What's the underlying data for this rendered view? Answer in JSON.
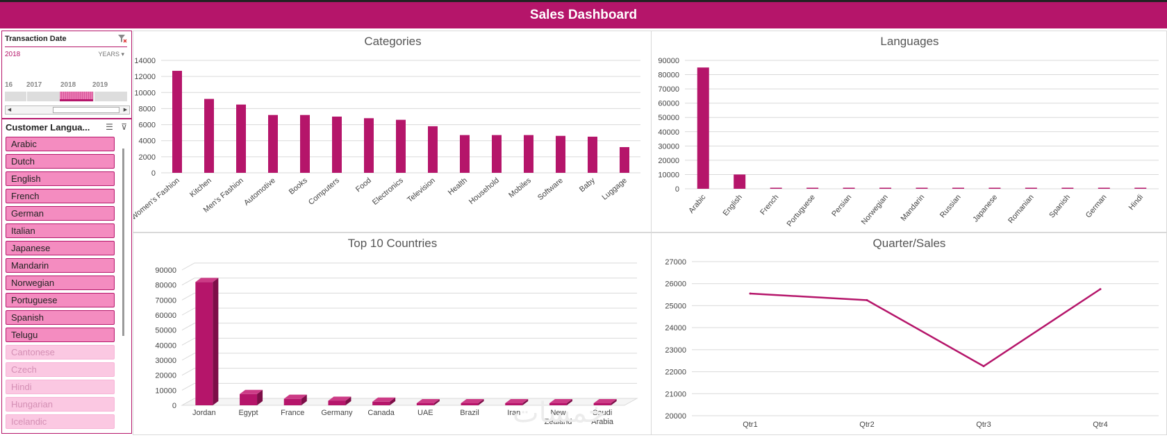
{
  "header": {
    "title": "Sales Dashboard"
  },
  "colors": {
    "accent": "#b5156a",
    "accent_dark": "#7d0e48",
    "accent_light": "#f48cc0"
  },
  "date_slicer": {
    "title": "Transaction Date",
    "selection": "2018",
    "level": "YEARS",
    "years": [
      "16",
      "2017",
      "2018",
      "2019"
    ]
  },
  "lang_slicer": {
    "title": "Customer Langua...",
    "items": [
      {
        "label": "Arabic",
        "selected": true
      },
      {
        "label": "Dutch",
        "selected": true
      },
      {
        "label": "English",
        "selected": true
      },
      {
        "label": "French",
        "selected": true
      },
      {
        "label": "German",
        "selected": true
      },
      {
        "label": "Italian",
        "selected": true
      },
      {
        "label": "Japanese",
        "selected": true
      },
      {
        "label": "Mandarin",
        "selected": true
      },
      {
        "label": "Norwegian",
        "selected": true
      },
      {
        "label": "Portuguese",
        "selected": true
      },
      {
        "label": "Spanish",
        "selected": true
      },
      {
        "label": "Telugu",
        "selected": true
      },
      {
        "label": "Cantonese",
        "selected": false
      },
      {
        "label": "Czech",
        "selected": false
      },
      {
        "label": "Hindi",
        "selected": false
      },
      {
        "label": "Hungarian",
        "selected": false
      },
      {
        "label": "Icelandic",
        "selected": false
      }
    ]
  },
  "chart_data": [
    {
      "id": "categories",
      "type": "bar",
      "title": "Categories",
      "categories": [
        "Women's Fashion",
        "Kitchen",
        "Men's Fashion",
        "Automotive",
        "Books",
        "Computers",
        "Food",
        "Electronics",
        "Television",
        "Health",
        "Household",
        "Mobiles",
        "Software",
        "Baby",
        "Luggage"
      ],
      "values": [
        12700,
        9200,
        8500,
        7200,
        7200,
        7000,
        6800,
        6600,
        5800,
        4700,
        4700,
        4700,
        4600,
        4500,
        3200
      ],
      "ylim": [
        0,
        14000
      ],
      "yticks": [
        "0",
        "2000",
        "4000",
        "6000",
        "8000",
        "10000",
        "12000",
        "14000"
      ]
    },
    {
      "id": "languages",
      "type": "bar",
      "title": "Languages",
      "categories": [
        "Arabic",
        "English",
        "French",
        "Portuguese",
        "Persian",
        "Norwegian",
        "Mandarin",
        "Russian",
        "Japanese",
        "Romanian",
        "Spanish",
        "German",
        "Hindi"
      ],
      "values": [
        85000,
        10000,
        300,
        250,
        250,
        200,
        200,
        200,
        200,
        150,
        150,
        150,
        150
      ],
      "ylim": [
        0,
        90000
      ],
      "yticks": [
        "0",
        "10000",
        "20000",
        "30000",
        "40000",
        "50000",
        "60000",
        "70000",
        "80000",
        "90000"
      ]
    },
    {
      "id": "countries",
      "type": "bar",
      "title": "Top 10 Countries",
      "categories": [
        "Jordan",
        "Egypt",
        "France",
        "Germany",
        "Canada",
        "UAE",
        "Brazil",
        "Iran",
        "New Zealand",
        "Saudi Arabia"
      ],
      "values": [
        82000,
        7500,
        4300,
        3000,
        2400,
        1200,
        1000,
        900,
        800,
        700
      ],
      "ylim": [
        0,
        90000
      ],
      "yticks": [
        "0",
        "10000",
        "20000",
        "30000",
        "40000",
        "50000",
        "60000",
        "70000",
        "80000",
        "90000"
      ]
    },
    {
      "id": "quarters",
      "type": "line",
      "title": "Quarter/Sales",
      "categories": [
        "Qtr1",
        "Qtr2",
        "Qtr3",
        "Qtr4"
      ],
      "values": [
        25550,
        25250,
        22250,
        25750
      ],
      "ylim": [
        20000,
        27000
      ],
      "yticks": [
        "20000",
        "21000",
        "22000",
        "23000",
        "24000",
        "25000",
        "26000",
        "27000"
      ]
    }
  ]
}
